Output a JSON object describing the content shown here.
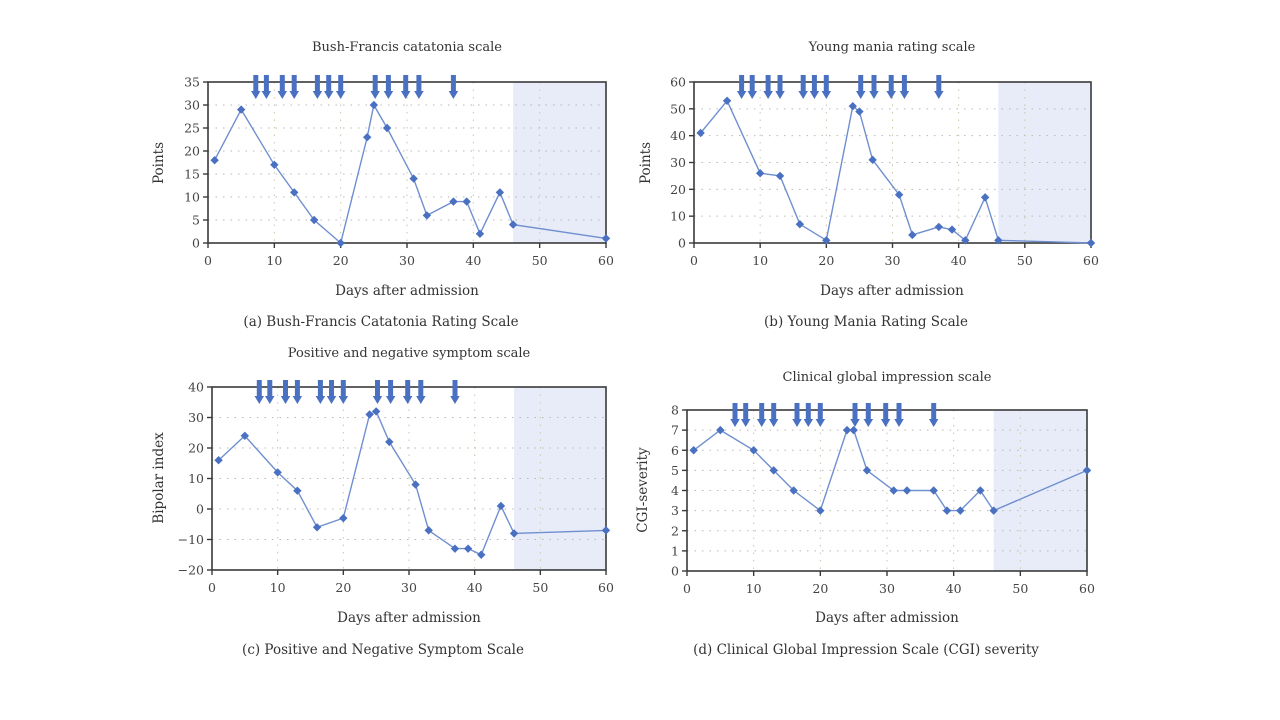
{
  "chart_data": [
    {
      "id": "a",
      "type": "line",
      "title": "Bush-Francis catatonia scale",
      "caption": "(a) Bush-Francis Catatonia Rating Scale",
      "xlabel": "Days after admission",
      "ylabel": "Points",
      "xlim": [
        0,
        60
      ],
      "ylim": [
        0,
        35
      ],
      "xticks": [
        0,
        10,
        20,
        30,
        40,
        50,
        60
      ],
      "yticks": [
        0,
        5,
        10,
        15,
        20,
        25,
        30,
        35
      ],
      "grid": true,
      "shaded_x_range": [
        46,
        60
      ],
      "treatment_arrow_days": [
        7.2,
        8.8,
        11.2,
        13.0,
        16.5,
        18.2,
        20.0,
        25.2,
        27.2,
        29.8,
        31.8,
        37.0
      ],
      "x": [
        1,
        5,
        10,
        13,
        16,
        20,
        24,
        25,
        27,
        31,
        33,
        37,
        39,
        41,
        44,
        46,
        60
      ],
      "y": [
        18,
        29,
        17,
        11,
        5,
        0,
        23,
        30,
        25,
        14,
        6,
        9,
        9,
        2,
        11,
        4,
        1
      ]
    },
    {
      "id": "b",
      "type": "line",
      "title": "Young mania rating scale",
      "caption": "(b) Young Mania Rating Scale",
      "xlabel": "Days after admission",
      "ylabel": "Points",
      "xlim": [
        0,
        60
      ],
      "ylim": [
        0,
        60
      ],
      "xticks": [
        0,
        10,
        20,
        30,
        40,
        50,
        60
      ],
      "yticks": [
        0,
        10,
        20,
        30,
        40,
        50,
        60
      ],
      "grid": true,
      "shaded_x_range": [
        46,
        60
      ],
      "treatment_arrow_days": [
        7.2,
        8.8,
        11.2,
        13.0,
        16.5,
        18.2,
        20.0,
        25.2,
        27.2,
        29.8,
        31.8,
        37.0
      ],
      "x": [
        1,
        5,
        10,
        13,
        16,
        20,
        24,
        25,
        27,
        31,
        33,
        37,
        39,
        41,
        44,
        46,
        60
      ],
      "y": [
        41,
        53,
        26,
        25,
        7,
        1,
        51,
        49,
        31,
        18,
        3,
        6,
        5,
        1,
        17,
        1,
        0
      ]
    },
    {
      "id": "c",
      "type": "line",
      "title": "Positive and negative symptom scale",
      "caption": "(c) Positive and Negative Symptom Scale",
      "xlabel": "Days after admission",
      "ylabel": "Bipolar index",
      "xlim": [
        0,
        60
      ],
      "ylim": [
        -20,
        40
      ],
      "xticks": [
        0,
        10,
        20,
        30,
        40,
        50,
        60
      ],
      "yticks": [
        -20,
        -10,
        0,
        10,
        20,
        30,
        40
      ],
      "ytick_labels": [
        "−20",
        "−10",
        "0",
        "10",
        "20",
        "30",
        "40"
      ],
      "grid": true,
      "shaded_x_range": [
        46,
        60
      ],
      "treatment_arrow_days": [
        7.2,
        8.8,
        11.2,
        13.0,
        16.5,
        18.2,
        20.0,
        25.2,
        27.2,
        29.8,
        31.8,
        37.0
      ],
      "x": [
        1,
        5,
        10,
        13,
        16,
        20,
        24,
        25,
        27,
        31,
        33,
        37,
        39,
        41,
        44,
        46,
        60
      ],
      "y": [
        16,
        24,
        12,
        6,
        -6,
        -3,
        31,
        32,
        22,
        8,
        -7,
        -13,
        -13,
        -15,
        1,
        -8,
        -7
      ]
    },
    {
      "id": "d",
      "type": "line",
      "title": "Clinical global impression scale",
      "caption": "(d) Clinical Global Impression Scale (CGI) severity",
      "xlabel": "Days after admission",
      "ylabel": "CGI-severity",
      "xlim": [
        0,
        60
      ],
      "ylim": [
        0,
        8
      ],
      "xticks": [
        0,
        10,
        20,
        30,
        40,
        50,
        60
      ],
      "yticks": [
        0,
        1,
        2,
        3,
        4,
        5,
        6,
        7,
        8
      ],
      "grid": true,
      "shaded_x_range": [
        46,
        60
      ],
      "treatment_arrow_days": [
        7.2,
        8.8,
        11.2,
        13.0,
        16.5,
        18.2,
        20.0,
        25.2,
        27.2,
        29.8,
        31.8,
        37.0
      ],
      "x": [
        1,
        5,
        10,
        13,
        16,
        20,
        24,
        25,
        27,
        31,
        33,
        37,
        39,
        41,
        44,
        46,
        60
      ],
      "y": [
        6,
        7,
        6,
        5,
        4,
        3,
        7,
        7,
        5,
        4,
        4,
        4,
        3,
        3,
        4,
        3,
        5
      ]
    }
  ]
}
